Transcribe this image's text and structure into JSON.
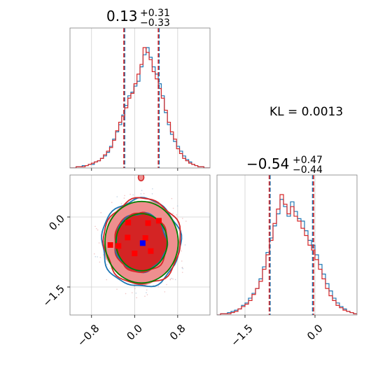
{
  "chart_data": {
    "type": "corner",
    "annotation": "KL = 0.0013",
    "colors": {
      "series_a": "#1f77b4",
      "series_b": "#d62728",
      "fill_dark": "#d42424",
      "fill_light": "#ee8f8f",
      "gaussian": "#008000",
      "marker_red": "#ff0000",
      "marker_blue": "#0000ff",
      "grid": "#cfcfcf"
    },
    "param1": {
      "title_median": "0.13",
      "title_plus": "+0.31",
      "title_minus": "−0.33",
      "median": 0.13,
      "quantiles_a": [
        -0.2,
        0.44
      ],
      "quantiles_b": [
        -0.2,
        0.44
      ],
      "xlim": [
        -1.2,
        1.4
      ],
      "xticks": [
        {
          "v": -0.8,
          "label": "−0.8"
        },
        {
          "v": 0.0,
          "label": "0.0"
        },
        {
          "v": 0.8,
          "label": "0.8"
        }
      ],
      "hist_a": [
        0,
        0,
        1,
        1,
        2,
        2,
        3,
        3,
        5,
        6,
        8,
        10,
        13,
        18,
        24,
        30,
        36,
        44,
        52,
        60,
        63,
        68,
        72,
        84,
        94,
        100,
        92,
        84,
        78,
        70,
        60,
        46,
        36,
        28,
        22,
        18,
        14,
        10,
        7,
        5,
        3,
        2,
        1,
        1,
        0,
        0
      ],
      "hist_b": [
        0,
        0,
        1,
        1,
        1,
        2,
        3,
        4,
        5,
        6,
        8,
        11,
        14,
        17,
        23,
        31,
        38,
        43,
        50,
        58,
        62,
        70,
        78,
        86,
        100,
        96,
        90,
        80,
        74,
        66,
        58,
        48,
        38,
        30,
        24,
        16,
        12,
        8,
        6,
        4,
        3,
        2,
        1,
        1,
        0,
        0
      ]
    },
    "param2": {
      "title_median": "−0.54",
      "title_plus": "+0.47",
      "title_minus": "−0.44",
      "median": -0.54,
      "quantiles_a": [
        -0.98,
        -0.07
      ],
      "quantiles_b": [
        -0.98,
        -0.03
      ],
      "xlim": [
        -2.1,
        0.9
      ],
      "xticks": [
        {
          "v": -1.5,
          "label": "−1.5"
        },
        {
          "v": 0.0,
          "label": "0.0"
        }
      ],
      "hist_a": [
        0,
        1,
        1,
        2,
        3,
        4,
        5,
        8,
        10,
        14,
        18,
        22,
        30,
        40,
        52,
        64,
        74,
        84,
        96,
        90,
        82,
        94,
        86,
        80,
        78,
        70,
        62,
        58,
        50,
        42,
        34,
        26,
        20,
        14,
        10,
        7,
        5,
        3,
        2,
        1
      ],
      "hist_b": [
        0,
        1,
        1,
        1,
        2,
        3,
        5,
        7,
        9,
        12,
        17,
        22,
        28,
        38,
        50,
        62,
        76,
        88,
        100,
        92,
        84,
        90,
        82,
        78,
        72,
        66,
        58,
        54,
        46,
        38,
        30,
        22,
        16,
        12,
        8,
        6,
        4,
        3,
        2,
        1
      ]
    },
    "joint": {
      "xlim": [
        -1.2,
        1.4
      ],
      "ylim": [
        -2.1,
        0.9
      ],
      "xticks": [
        {
          "v": -0.8,
          "label": "−0.8"
        },
        {
          "v": 0.0,
          "label": "0.0"
        },
        {
          "v": 0.8,
          "label": "0.8"
        }
      ],
      "yticks": [
        {
          "v": 0.0,
          "label": "0.0"
        },
        {
          "v": -1.5,
          "label": "−1.5"
        }
      ],
      "gaussian_center": [
        0.13,
        -0.54
      ],
      "gaussian_sigma": [
        0.34,
        0.46
      ],
      "red_markers": [
        [
          -0.12,
          -0.12
        ],
        [
          0.25,
          -0.13
        ],
        [
          0.45,
          -0.08
        ],
        [
          -0.13,
          -0.44
        ],
        [
          -0.3,
          -0.62
        ],
        [
          0.0,
          -0.78
        ],
        [
          0.3,
          -0.73
        ],
        [
          -0.45,
          -0.6
        ],
        [
          0.2,
          -0.45
        ]
      ],
      "blue_markers": [
        [
          0.15,
          -0.56
        ]
      ]
    }
  }
}
